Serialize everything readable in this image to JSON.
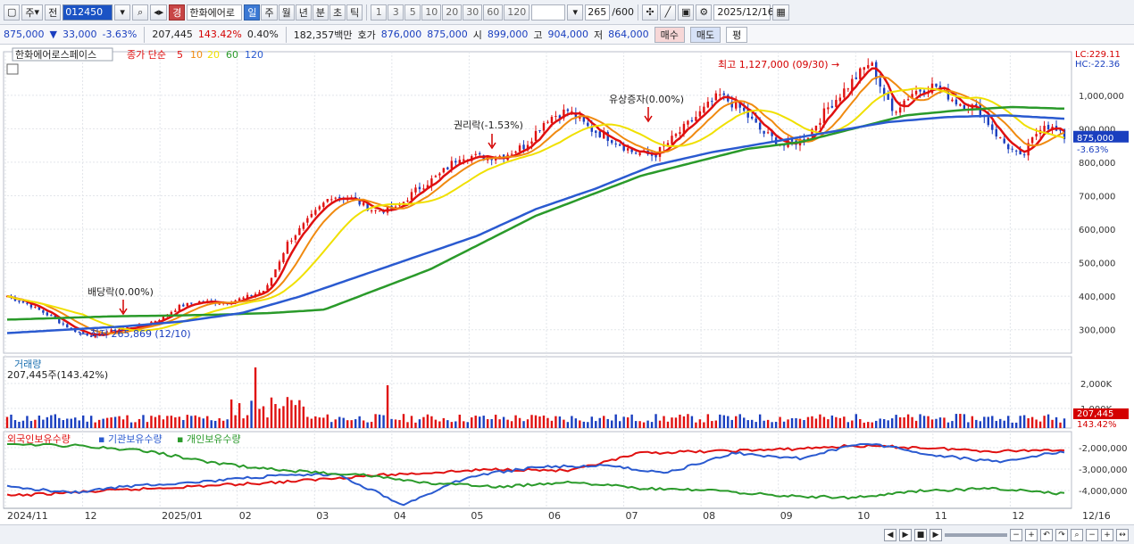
{
  "toolbar": {
    "period": "주",
    "prev_label": "전",
    "code": "012450",
    "badge": "경",
    "stock_name": "한화에어로",
    "periods": [
      "일",
      "주",
      "월",
      "년",
      "분",
      "초",
      "틱"
    ],
    "active_period": "일",
    "ticks": [
      "1",
      "3",
      "5",
      "10",
      "20",
      "30",
      "60",
      "120"
    ],
    "count": "265",
    "count_total": "/600",
    "date": "2025/12/16"
  },
  "quote": {
    "price": "875,000",
    "change_arrow": "▼",
    "change": "33,000",
    "change_pct": "-3.63%",
    "volume": "207,445",
    "volume_ratio": "143.42%",
    "turnover_ratio": "0.40%",
    "amount": "182,357백만",
    "bid_label": "호가",
    "bid": "876,000",
    "ask": "875,000",
    "open_label": "시",
    "open": "899,000",
    "high_label": "고",
    "high": "904,000",
    "low_label": "저",
    "low": "864,000",
    "buy_label": "매수",
    "sell_label": "매도",
    "eval_label": "평"
  },
  "legend": {
    "name": "한화에어로스페이스",
    "ma_label": "종가 단순",
    "ma": [
      {
        "period": "5",
        "color": "#e01010"
      },
      {
        "period": "10",
        "color": "#f08a10"
      },
      {
        "period": "20",
        "color": "#f0e000"
      },
      {
        "period": "60",
        "color": "#2a9a2a"
      },
      {
        "period": "120",
        "color": "#2a5ad0"
      }
    ]
  },
  "volume_panel": {
    "title": "거래량",
    "value": "207,445주(143.42%)",
    "axis": [
      "2,000K",
      "1,000K"
    ],
    "last_label": "207,445",
    "last_ratio": "143.42%"
  },
  "holdings_panel": {
    "series": [
      {
        "name": "외국인보유수량",
        "color": "#e01010"
      },
      {
        "name": "기관보유수량",
        "color": "#2a5ad0"
      },
      {
        "name": "개인보유수량",
        "color": "#2a9a2a"
      }
    ],
    "axis": [
      "-2,000,000",
      "-3,000,000",
      "-4,000,000"
    ]
  },
  "price_axis": {
    "labels": [
      "1,000,000",
      "900,000",
      "800,000",
      "700,000",
      "600,000",
      "500,000",
      "400,000",
      "300,000"
    ],
    "lc": "LC:229.11",
    "hc": "HC:-22.36",
    "current": "875,000",
    "current_pct": "-3.63%"
  },
  "annotations": {
    "high": "최고 1,127,000 (09/30)",
    "low": "최저 265,869 (12/10)",
    "dividend": "배당락(0.00%)",
    "rights": "권리락(-1.53%)",
    "paid_in": "유상증자(0.00%)"
  },
  "x_labels": [
    "2024/11",
    "12",
    "2025/01",
    "02",
    "03",
    "04",
    "05",
    "06",
    "07",
    "08",
    "09",
    "10",
    "11",
    "12"
  ],
  "x_right": "12/16",
  "chart_data": {
    "type": "candlestick",
    "months": [
      "2024/11",
      "12",
      "2025/01",
      "02",
      "03",
      "04",
      "05",
      "06",
      "07",
      "08",
      "09",
      "10",
      "11",
      "12"
    ],
    "close_path": [
      400000,
      375000,
      340000,
      300000,
      280000,
      300000,
      310000,
      330000,
      370000,
      385000,
      380000,
      395000,
      420000,
      560000,
      630000,
      700000,
      690000,
      655000,
      660000,
      720000,
      760000,
      820000,
      815000,
      820000,
      850000,
      930000,
      955000,
      900000,
      870000,
      830000,
      820000,
      880000,
      940000,
      1000000,
      960000,
      890000,
      850000,
      870000,
      960000,
      1030000,
      1100000,
      950000,
      1010000,
      1030000,
      980000,
      960000,
      870000,
      810000,
      920000,
      875000
    ],
    "ma60_path": [
      330000,
      335000,
      340000,
      342000,
      345000,
      350000,
      360000,
      420000,
      480000,
      560000,
      640000,
      700000,
      760000,
      800000,
      840000,
      860000,
      900000,
      940000,
      955000,
      965000,
      960000
    ],
    "ma120_path": [
      290000,
      300000,
      310000,
      325000,
      350000,
      400000,
      460000,
      520000,
      580000,
      660000,
      720000,
      790000,
      830000,
      860000,
      890000,
      920000,
      935000,
      940000,
      930000
    ],
    "volume": "207,445",
    "price_ylim": [
      230000,
      1130000
    ]
  }
}
